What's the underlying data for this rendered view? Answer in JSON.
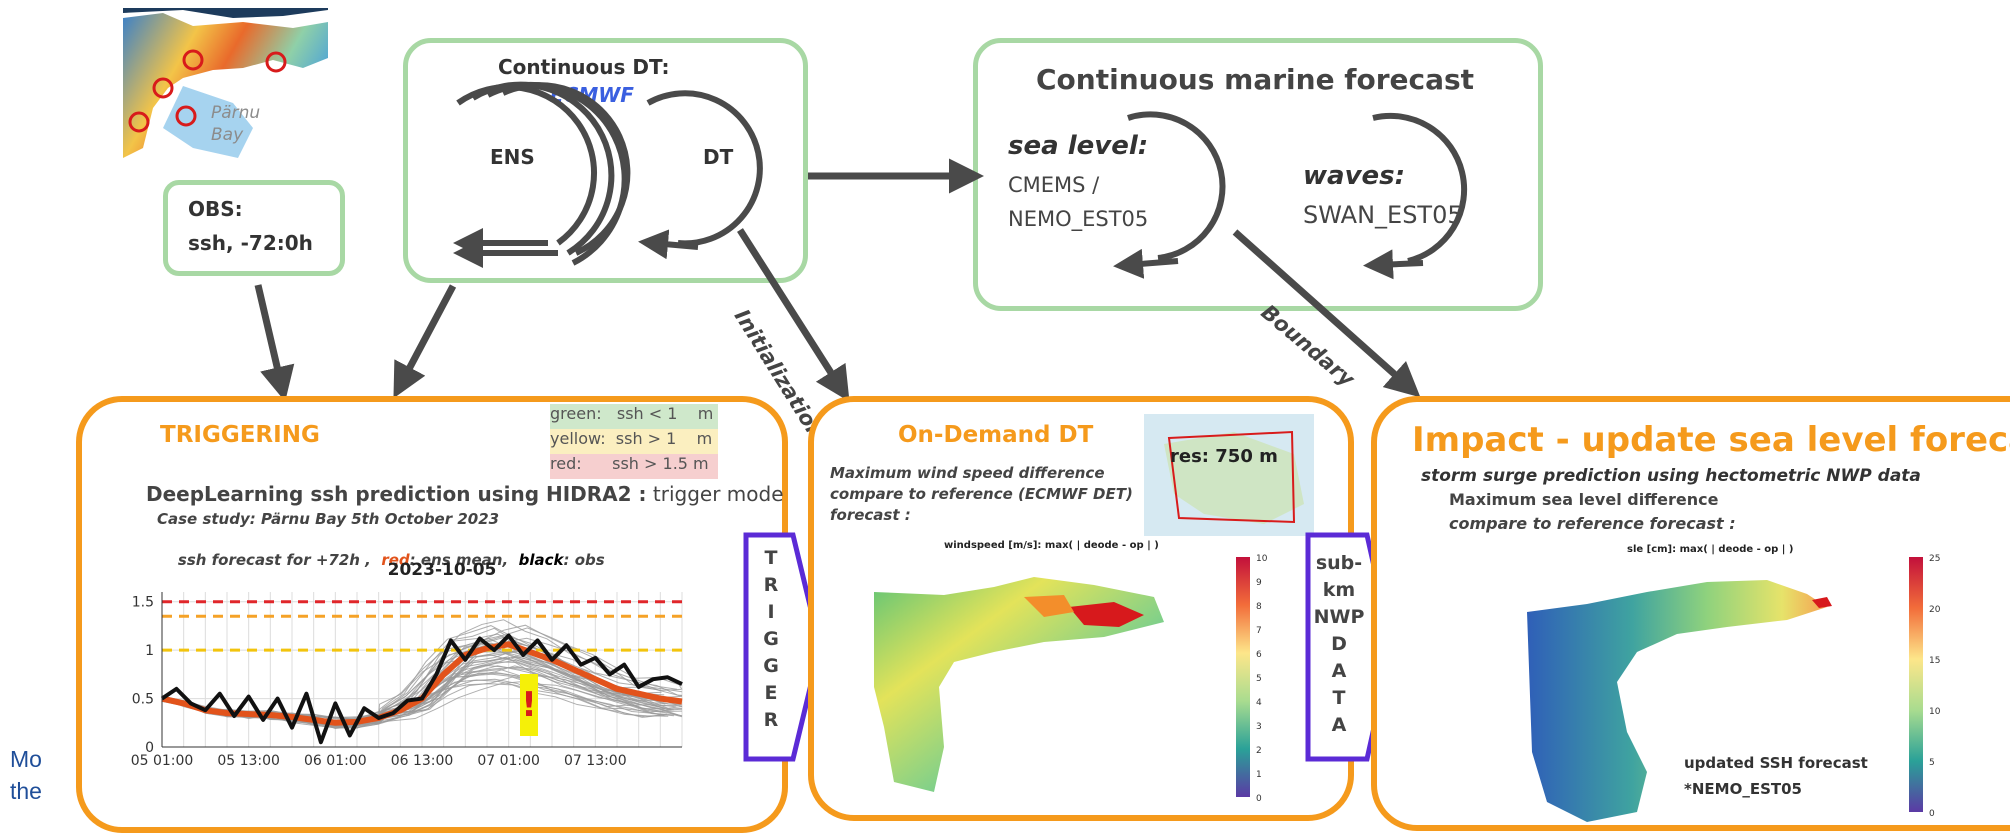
{
  "map_top": {
    "label_line1": "Pärnu",
    "label_line2": "Bay"
  },
  "obs": {
    "title": "OBS:",
    "value": "ssh, -72:0h"
  },
  "continuous_dt": {
    "title": "Continuous DT:",
    "subtitle": "ECMWF",
    "ens": "ENS",
    "dt": "DT"
  },
  "marine": {
    "title": "Continuous marine forecast",
    "sea_level_label": "sea level:",
    "sea_level_src1": "CMEMS /",
    "sea_level_src2": "NEMO_EST05",
    "waves_label": "waves:",
    "waves_src": "SWAN_EST05"
  },
  "arrow_labels": {
    "initialization": "Initialization",
    "boundary": "Boundary"
  },
  "triggering": {
    "title": "TRIGGERING",
    "legend": [
      {
        "text": "green:   ssh < 1    m",
        "color": "#cfe8cb"
      },
      {
        "text": "yellow:  ssh > 1    m",
        "color": "#fbefc0"
      },
      {
        "text": "red:      ssh > 1.5 m",
        "color": "#f6cfcf"
      }
    ],
    "heading_bold": "DeepLearning ssh prediction using HIDRA2 :",
    "heading_mode": " trigger mode",
    "case_study": "Case study:  Pärnu Bay 5th October 2023",
    "forecast_prefix": "ssh forecast for +72h ,  ",
    "forecast_red": "red",
    "forecast_mid": ": ens mean,  ",
    "forecast_black": "black",
    "forecast_suffix": ": obs",
    "exclaim": "!"
  },
  "trigger_arrow": {
    "letters": [
      "T",
      "R",
      "I",
      "G",
      "G",
      "E",
      "R"
    ]
  },
  "ondemand": {
    "title": "On-Demand DT",
    "res": "res: 750 m",
    "desc1": "Maximum wind speed difference",
    "desc2": "compare to reference (ECMWF DET)",
    "desc3": "forecast :",
    "map_title": "windspeed [m/s]: max(  | deode - op | )",
    "colorbar_ticks": [
      "10",
      "9",
      "8",
      "7",
      "6",
      "5",
      "4",
      "3",
      "2",
      "1",
      "0"
    ]
  },
  "nwp_arrow": {
    "line1": "sub-",
    "line2": "km",
    "line3": "NWP",
    "letters": [
      "D",
      "A",
      "T",
      "A"
    ]
  },
  "impact": {
    "title": "Impact - update sea level forecast",
    "subtitle": "storm surge prediction using hectometric NWP data",
    "desc1": "Maximum sea level difference",
    "desc2": "compare to reference forecast :",
    "map_title": "sle [cm]: max(  | deode - op | )",
    "updated1": "updated SSH forecast",
    "updated2": "*NEMO_EST05",
    "colorbar_ticks": [
      "25",
      "20",
      "15",
      "10",
      "5",
      "0"
    ]
  },
  "left_edge_text": {
    "line1": "Mo",
    "line2": "the"
  },
  "colors": {
    "green_box": "#a8d8a4",
    "orange_box": "#f59a1c",
    "purple_arrow": "#5b2bd6",
    "arrow_gray": "#4a4a4a",
    "title_orange": "#f59a1c",
    "ecmwf_blue": "#3a5fe0",
    "left_text_blue": "#1f4e99"
  },
  "chart_data": {
    "type": "line",
    "title": "2023-10-05",
    "xlabel": "",
    "ylabel": "",
    "x_ticks": [
      "05 01:00",
      "05 13:00",
      "06 01:00",
      "06 13:00",
      "07 01:00",
      "07 13:00"
    ],
    "y_ticks": [
      "0",
      "0.5",
      "1",
      "1.5"
    ],
    "ylim": [
      0,
      1.6
    ],
    "xlim_hours": [
      0,
      72
    ],
    "thresholds": [
      {
        "value": 1.5,
        "color": "#e0262a"
      },
      {
        "value": 1.35,
        "color": "#f5a227"
      },
      {
        "value": 1.0,
        "color": "#f2c40d"
      }
    ],
    "series": [
      {
        "name": "red",
        "color": "#e2531b",
        "x": [
          0,
          3,
          6,
          9,
          12,
          15,
          18,
          21,
          24,
          27,
          30,
          33,
          36,
          39,
          42,
          45,
          48,
          51,
          54,
          57,
          60,
          63,
          66,
          69,
          72
        ],
        "y": [
          0.5,
          0.45,
          0.38,
          0.35,
          0.34,
          0.33,
          0.31,
          0.28,
          0.25,
          0.26,
          0.3,
          0.38,
          0.5,
          0.75,
          0.95,
          1.02,
          1.06,
          0.98,
          0.9,
          0.8,
          0.7,
          0.6,
          0.55,
          0.5,
          0.47
        ]
      },
      {
        "name": "black",
        "color": "#111111",
        "x": [
          0,
          2,
          4,
          6,
          8,
          10,
          12,
          14,
          16,
          18,
          20,
          22,
          24,
          26,
          28,
          30,
          32,
          34,
          36,
          38,
          40,
          42,
          44,
          46,
          48,
          50,
          52,
          54,
          56,
          58,
          60,
          62,
          64,
          66,
          68,
          70,
          72
        ],
        "y": [
          0.5,
          0.6,
          0.45,
          0.38,
          0.55,
          0.32,
          0.52,
          0.28,
          0.5,
          0.2,
          0.55,
          0.05,
          0.45,
          0.12,
          0.4,
          0.3,
          0.35,
          0.48,
          0.5,
          0.75,
          1.1,
          0.9,
          1.12,
          1.0,
          1.15,
          0.95,
          1.1,
          0.9,
          1.05,
          0.85,
          0.92,
          0.75,
          0.85,
          0.62,
          0.7,
          0.72,
          0.65
        ]
      }
    ]
  }
}
